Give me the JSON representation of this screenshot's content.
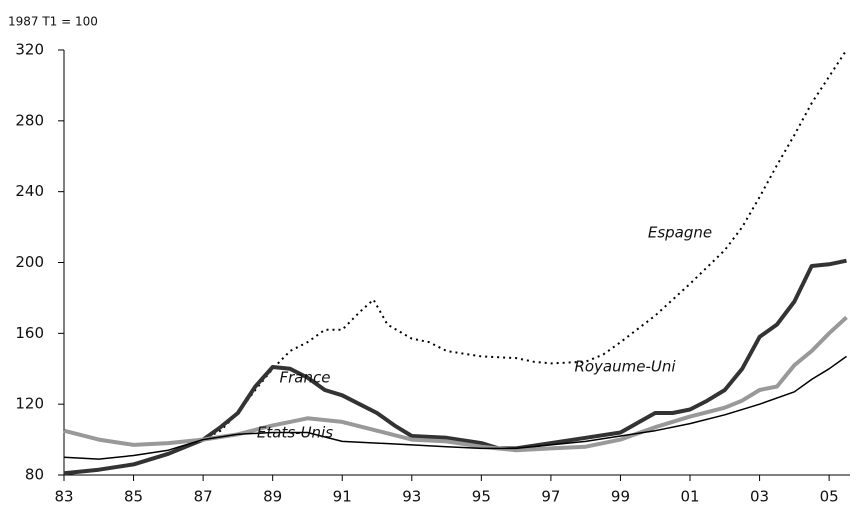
{
  "chart_data": {
    "type": "line",
    "subtitle": "1987 T1 = 100",
    "xlim": [
      1983,
      2005.6
    ],
    "ylim": [
      80,
      320
    ],
    "yticks": [
      80,
      120,
      160,
      200,
      240,
      280,
      320
    ],
    "xticks": [
      {
        "value": 1983,
        "label": "83"
      },
      {
        "value": 1985,
        "label": "85"
      },
      {
        "value": 1987,
        "label": "87"
      },
      {
        "value": 1989,
        "label": "89"
      },
      {
        "value": 1991,
        "label": "91"
      },
      {
        "value": 1993,
        "label": "93"
      },
      {
        "value": 1995,
        "label": "95"
      },
      {
        "value": 1997,
        "label": "97"
      },
      {
        "value": 1999,
        "label": "99"
      },
      {
        "value": 2001,
        "label": "01"
      },
      {
        "value": 2003,
        "label": "03"
      },
      {
        "value": 2005,
        "label": "05"
      }
    ],
    "series": [
      {
        "name": "Espagne",
        "color": "#000000",
        "style": "dotted",
        "line_width": 2,
        "x": [
          1987,
          1987.5,
          1988,
          1988.5,
          1989,
          1989.5,
          1990,
          1990.5,
          1991,
          1991.5,
          1991.9,
          1992.3,
          1993,
          1993.5,
          1994,
          1995,
          1996,
          1996.5,
          1997,
          1998,
          1998.5,
          1999,
          2000,
          2001,
          2002,
          2002.5,
          2003,
          2003.5,
          2004,
          2004.5,
          2005,
          2005.5
        ],
        "values": [
          100,
          105,
          115,
          128,
          140,
          150,
          155,
          162,
          162,
          172,
          179,
          165,
          157,
          155,
          150,
          147,
          146,
          144,
          143,
          144,
          148,
          155,
          170,
          188,
          207,
          220,
          237,
          255,
          272,
          290,
          305,
          320
        ]
      },
      {
        "name": "Royaume-Uni",
        "color": "#333333",
        "style": "solid",
        "line_width": 4,
        "x": [
          1983,
          1984,
          1985,
          1986,
          1987,
          1987.5,
          1988,
          1988.5,
          1989,
          1989.5,
          1990,
          1990.5,
          1991,
          1991.5,
          1992,
          1992.5,
          1993,
          1994,
          1995,
          1995.5,
          1996,
          1997,
          1998,
          1999,
          2000,
          2000.5,
          2001,
          2001.5,
          2002,
          2002.5,
          2003,
          2003.5,
          2004,
          2004.5,
          2005,
          2005.5
        ],
        "values": [
          81,
          83,
          86,
          92,
          100,
          107,
          115,
          130,
          141,
          140,
          135,
          128,
          125,
          120,
          115,
          108,
          102,
          101,
          98,
          95,
          95,
          98,
          101,
          104,
          115,
          115,
          117,
          122,
          128,
          140,
          158,
          165,
          178,
          198,
          199,
          201
        ]
      },
      {
        "name": "France",
        "color": "#999999",
        "style": "solid",
        "line_width": 4,
        "x": [
          1983,
          1984,
          1985,
          1986,
          1987,
          1988,
          1989,
          1989.5,
          1990,
          1991,
          1992,
          1993,
          1994,
          1995,
          1996,
          1997,
          1998,
          1999,
          2000,
          2001,
          2002,
          2002.5,
          2003,
          2003.5,
          2004,
          2004.5,
          2005,
          2005.5
        ],
        "values": [
          105,
          100,
          97,
          98,
          100,
          103,
          108,
          110,
          112,
          110,
          105,
          100,
          99,
          96,
          94,
          95,
          96,
          100,
          107,
          113,
          118,
          122,
          128,
          130,
          142,
          150,
          160,
          169
        ]
      },
      {
        "name": "Etats-Unis",
        "color": "#000000",
        "style": "solid",
        "line_width": 1.5,
        "x": [
          1983,
          1984,
          1985,
          1986,
          1987,
          1988,
          1989,
          1990,
          1991,
          1992,
          1993,
          1994,
          1995,
          1996,
          1997,
          1998,
          1999,
          2000,
          2001,
          2002,
          2003,
          2004,
          2004.5,
          2005,
          2005.5
        ],
        "values": [
          90,
          89,
          91,
          94,
          100,
          103,
          104,
          104,
          99,
          98,
          97,
          96,
          95,
          95,
          97,
          99,
          102,
          105,
          109,
          114,
          120,
          127,
          134,
          140,
          147
        ]
      }
    ]
  }
}
